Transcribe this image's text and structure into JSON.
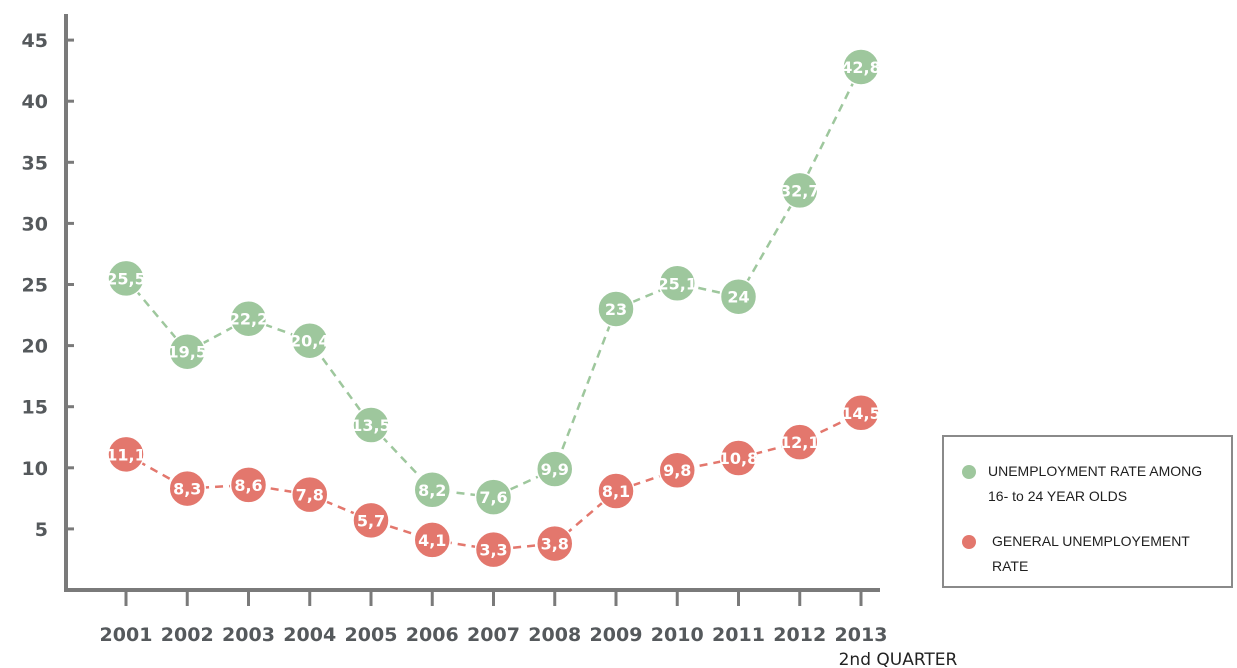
{
  "colors": {
    "youth": "#9ec79d",
    "youth_line": "#9ec79d",
    "general": "#e3776d",
    "general_line": "#e3776d",
    "axis": "#7a7a7a",
    "tick_text": "#55595c"
  },
  "chart_data": {
    "type": "line",
    "title": "",
    "xlabel": "",
    "ylabel": "",
    "categories": [
      "2001",
      "2002",
      "2003",
      "2004",
      "2005",
      "2006",
      "2007",
      "2008",
      "2009",
      "2010",
      "2011",
      "2012",
      "2013"
    ],
    "category_sublabels": {
      "2013": "2nd QUARTER"
    },
    "yticks": [
      5,
      10,
      15,
      20,
      25,
      30,
      35,
      40,
      45
    ],
    "ylim": [
      0,
      47
    ],
    "grid": false,
    "legend_position": "bottom-right",
    "series": [
      {
        "key": "youth",
        "name": "UNEMPLOYMENT RATE AMONG 16- to 24 YEAR OLDS",
        "values": [
          25.5,
          19.5,
          22.2,
          20.4,
          13.5,
          8.2,
          7.6,
          9.9,
          23,
          25.1,
          24,
          32.7,
          42.8
        ],
        "labels": [
          "25,5",
          "19,5",
          "22,2",
          "20,4",
          "13,5",
          "8,2",
          "7,6",
          "9,9",
          "23",
          "25,1",
          "24",
          "32,7",
          "42,8"
        ]
      },
      {
        "key": "general",
        "name": "GENERAL UNEMPLOYEMENT RATE",
        "values": [
          11.1,
          8.3,
          8.6,
          7.8,
          5.7,
          4.1,
          3.3,
          3.8,
          8.1,
          9.8,
          10.8,
          12.1,
          14.5
        ],
        "labels": [
          "11,1",
          "8,3",
          "8,6",
          "7,8",
          "5,7",
          "4,1",
          "3,3",
          "3,8",
          "8,1",
          "9,8",
          "10,8",
          "12,1",
          "14,5"
        ]
      }
    ]
  },
  "legend": {
    "youth_line1": "UNEMPLOYMENT RATE AMONG",
    "youth_line2": "16- to 24 YEAR OLDS",
    "general_line1": "GENERAL UNEMPLOYEMENT",
    "general_line2": "RATE"
  }
}
